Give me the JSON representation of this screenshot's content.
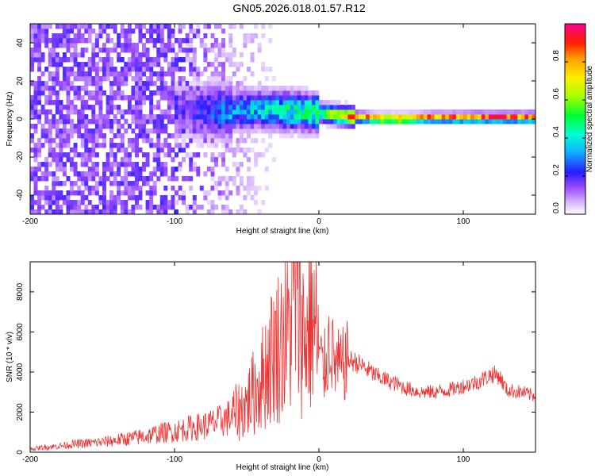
{
  "figure_title": "GN05.2026.018.01.57.R12",
  "chart_data": [
    {
      "type": "heatmap",
      "xlabel": "Height of straight line (km)",
      "ylabel": "Frequency (Hz)",
      "xlim": [
        -200,
        150
      ],
      "ylim": [
        -50,
        50
      ],
      "xticks": [
        -200,
        -100,
        0,
        100
      ],
      "yticks": [
        -40,
        -20,
        0,
        20,
        40
      ],
      "colorbar": {
        "label": "Normalized spectral amplitude",
        "range": [
          0,
          1
        ],
        "ticks": [
          "0.0",
          "0.2",
          "0.4",
          "0.6",
          "0.8"
        ],
        "colormap": "rainbow (white-violet-blue-cyan-green-yellow-red-magenta)"
      },
      "ridge_frequency_hz": [
        {
          "x": -90,
          "y": 3
        },
        {
          "x": -60,
          "y": 3
        },
        {
          "x": -40,
          "y": 4
        },
        {
          "x": -20,
          "y": 3
        },
        {
          "x": 0,
          "y": 2
        },
        {
          "x": 20,
          "y": 0
        },
        {
          "x": 40,
          "y": -1
        },
        {
          "x": 60,
          "y": -1
        },
        {
          "x": 80,
          "y": -0.5
        },
        {
          "x": 100,
          "y": -0.5
        },
        {
          "x": 120,
          "y": -0.5
        },
        {
          "x": 150,
          "y": -0.5
        }
      ],
      "ridge_peak_amplitude": [
        {
          "x": -90,
          "y": 0.2
        },
        {
          "x": -50,
          "y": 0.4
        },
        {
          "x": -20,
          "y": 0.5
        },
        {
          "x": 0,
          "y": 0.55
        },
        {
          "x": 20,
          "y": 0.85
        },
        {
          "x": 40,
          "y": 0.95
        },
        {
          "x": 60,
          "y": 0.95
        },
        {
          "x": 80,
          "y": 0.9
        },
        {
          "x": 100,
          "y": 0.9
        },
        {
          "x": 120,
          "y": 0.95
        },
        {
          "x": 150,
          "y": 0.95
        }
      ]
    },
    {
      "type": "line",
      "xlabel": "Height of straight line (km)",
      "ylabel": "SNR (10 * v/v)",
      "xlim": [
        -200,
        150
      ],
      "ylim": [
        0,
        9500
      ],
      "xticks": [
        -200,
        -100,
        0,
        100
      ],
      "yticks": [
        0,
        2000,
        4000,
        6000,
        8000
      ],
      "series": [
        {
          "color": "#ee3333",
          "x": [
            -200,
            -190,
            -180,
            -170,
            -160,
            -150,
            -140,
            -130,
            -120,
            -110,
            -100,
            -90,
            -80,
            -70,
            -60,
            -50,
            -45,
            -40,
            -35,
            -30,
            -25,
            -20,
            -17,
            -15,
            -12,
            -10,
            -8,
            -5,
            -2,
            0,
            3,
            5,
            8,
            10,
            15,
            20,
            25,
            30,
            40,
            50,
            60,
            70,
            80,
            90,
            100,
            110,
            120,
            125,
            130,
            140,
            150
          ],
          "y": [
            150,
            250,
            300,
            400,
            450,
            500,
            600,
            700,
            800,
            950,
            1050,
            1200,
            1300,
            1500,
            1800,
            2400,
            3000,
            3500,
            4500,
            5200,
            5600,
            6000,
            8500,
            7000,
            6500,
            5500,
            6000,
            6800,
            6000,
            5000,
            4000,
            4500,
            5800,
            4500,
            4200,
            4600,
            4500,
            4300,
            3800,
            3500,
            3200,
            3000,
            3000,
            3100,
            3300,
            3500,
            3900,
            3800,
            3100,
            3000,
            2800
          ]
        }
      ]
    }
  ]
}
